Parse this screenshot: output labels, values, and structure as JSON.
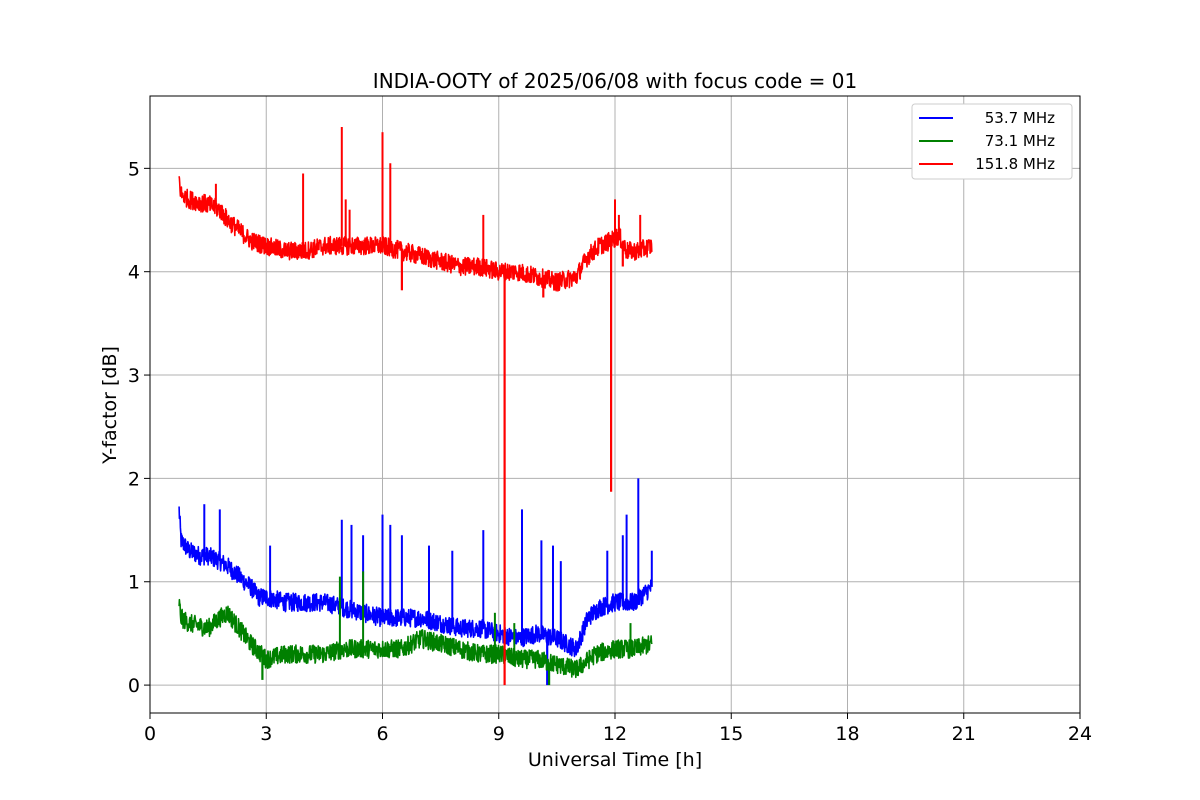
{
  "chart_data": {
    "type": "line",
    "title": "INDIA-OOTY of 2025/06/08 with focus code = 01",
    "xlabel": "Universal Time [h]",
    "ylabel": "Y-factor [dB]",
    "xlim": [
      0,
      24
    ],
    "ylim": [
      -0.27,
      5.7
    ],
    "xticks": [
      "0",
      "3",
      "6",
      "9",
      "12",
      "15",
      "18",
      "21",
      "24"
    ],
    "yticks": [
      "0",
      "1",
      "2",
      "3",
      "4",
      "5"
    ],
    "grid": true,
    "legend_position": "top-right",
    "series": [
      {
        "name": "53.7 MHz",
        "color": "#0000ff",
        "x": [
          0.75,
          0.8,
          1.0,
          1.3,
          1.5,
          1.8,
          2.0,
          2.3,
          2.6,
          2.8,
          3.0,
          3.5,
          4.0,
          4.5,
          5.0,
          5.5,
          6.0,
          6.5,
          7.0,
          7.5,
          8.0,
          8.5,
          9.0,
          9.5,
          10.0,
          10.5,
          11.0,
          11.3,
          11.6,
          12.0,
          12.5,
          12.95
        ],
        "y": [
          1.7,
          1.4,
          1.3,
          1.25,
          1.25,
          1.2,
          1.15,
          1.05,
          0.95,
          0.85,
          0.85,
          0.8,
          0.8,
          0.8,
          0.75,
          0.7,
          0.65,
          0.65,
          0.65,
          0.6,
          0.55,
          0.55,
          0.5,
          0.45,
          0.5,
          0.45,
          0.35,
          0.65,
          0.75,
          0.8,
          0.8,
          0.95
        ],
        "spikes": [
          [
            1.4,
            1.75
          ],
          [
            1.8,
            1.7
          ],
          [
            3.1,
            1.35
          ],
          [
            4.95,
            1.6
          ],
          [
            5.2,
            1.55
          ],
          [
            5.5,
            1.45
          ],
          [
            6.0,
            1.65
          ],
          [
            6.2,
            1.55
          ],
          [
            6.5,
            1.45
          ],
          [
            7.2,
            1.35
          ],
          [
            7.8,
            1.3
          ],
          [
            8.6,
            1.5
          ],
          [
            9.6,
            1.7
          ],
          [
            10.1,
            1.4
          ],
          [
            10.4,
            1.35
          ],
          [
            10.6,
            1.2
          ],
          [
            11.8,
            1.3
          ],
          [
            12.2,
            1.45
          ],
          [
            12.3,
            1.65
          ],
          [
            12.6,
            2.0
          ],
          [
            12.95,
            1.3
          ]
        ],
        "dips": [
          [
            10.25,
            0.0
          ]
        ]
      },
      {
        "name": "73.1 MHz",
        "color": "#008000",
        "x": [
          0.75,
          0.8,
          1.0,
          1.5,
          1.8,
          2.0,
          2.3,
          2.6,
          3.0,
          3.5,
          4.0,
          4.5,
          5.0,
          5.5,
          6.0,
          6.5,
          7.0,
          7.5,
          8.0,
          8.5,
          9.0,
          9.5,
          10.0,
          10.5,
          11.0,
          11.5,
          12.0,
          12.5,
          12.95
        ],
        "y": [
          0.8,
          0.65,
          0.6,
          0.55,
          0.65,
          0.7,
          0.55,
          0.4,
          0.25,
          0.3,
          0.3,
          0.3,
          0.35,
          0.35,
          0.35,
          0.35,
          0.45,
          0.4,
          0.35,
          0.3,
          0.3,
          0.25,
          0.25,
          0.2,
          0.15,
          0.3,
          0.35,
          0.35,
          0.4
        ],
        "spikes": [
          [
            4.9,
            1.05
          ],
          [
            5.5,
            1.1
          ],
          [
            8.9,
            0.7
          ],
          [
            9.4,
            0.6
          ],
          [
            12.4,
            0.6
          ]
        ],
        "dips": [
          [
            2.9,
            0.05
          ],
          [
            10.3,
            0.0
          ]
        ]
      },
      {
        "name": "151.8 MHz",
        "color": "#ff0000",
        "x": [
          0.75,
          0.8,
          1.0,
          1.5,
          1.8,
          2.0,
          2.3,
          2.6,
          3.0,
          3.5,
          4.0,
          4.5,
          5.0,
          5.5,
          6.0,
          6.5,
          7.0,
          7.5,
          8.0,
          8.5,
          9.0,
          9.5,
          10.0,
          10.5,
          11.0,
          11.3,
          11.6,
          11.9,
          12.1,
          12.3,
          12.6,
          12.95
        ],
        "y": [
          4.9,
          4.75,
          4.7,
          4.65,
          4.6,
          4.5,
          4.4,
          4.3,
          4.25,
          4.2,
          4.2,
          4.25,
          4.25,
          4.25,
          4.25,
          4.2,
          4.15,
          4.1,
          4.05,
          4.05,
          4.0,
          4.0,
          3.95,
          3.9,
          3.95,
          4.15,
          4.25,
          4.3,
          4.35,
          4.2,
          4.2,
          4.25
        ],
        "spikes": [
          [
            1.7,
            4.85
          ],
          [
            3.95,
            4.95
          ],
          [
            4.95,
            5.4
          ],
          [
            5.05,
            4.7
          ],
          [
            5.15,
            4.6
          ],
          [
            6.0,
            5.35
          ],
          [
            6.2,
            5.05
          ],
          [
            8.6,
            4.55
          ],
          [
            12.0,
            4.7
          ],
          [
            12.1,
            4.55
          ],
          [
            12.65,
            4.55
          ]
        ],
        "dips": [
          [
            6.5,
            3.82
          ],
          [
            9.15,
            0.0
          ],
          [
            10.15,
            3.75
          ],
          [
            11.9,
            1.87
          ],
          [
            12.2,
            4.05
          ]
        ]
      }
    ]
  }
}
